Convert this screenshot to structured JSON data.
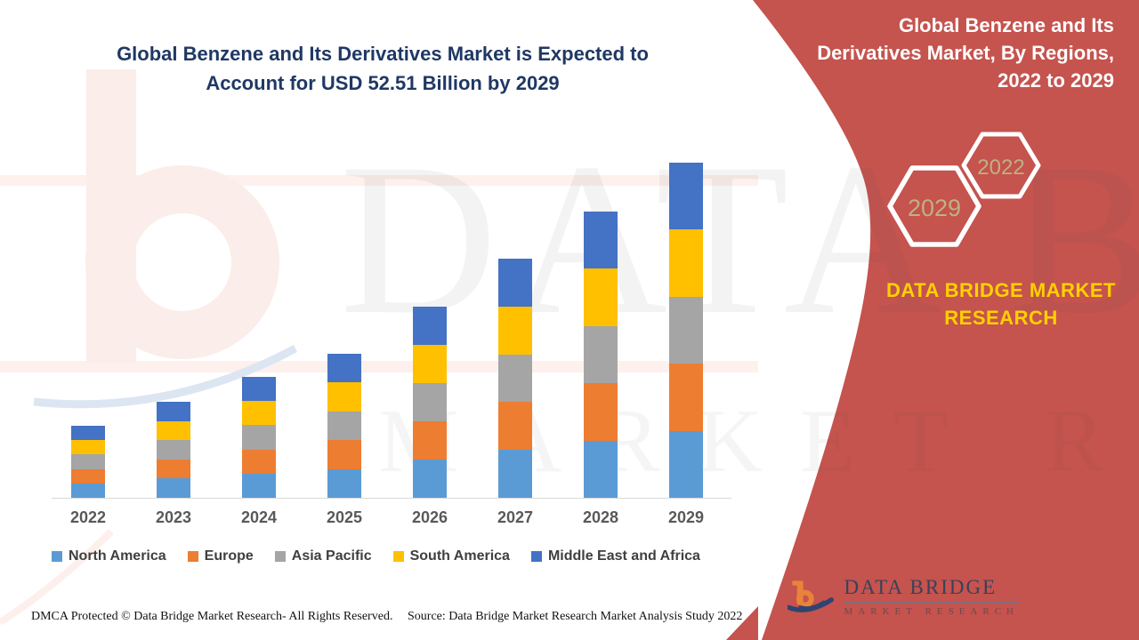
{
  "header": {
    "left_title_lines": [
      "Global Benzene and Its Derivatives Market is Expected to",
      "Account for USD 52.51 Billion by 2029"
    ],
    "title_color": "#1F3864"
  },
  "right_panel": {
    "bg_color": "#C5534E",
    "title_lines": [
      "Global Benzene and Its",
      "Derivatives Market, By Regions,",
      "2022 to 2029"
    ],
    "hexagon_years": [
      "2029",
      "2022"
    ],
    "hexagon_text_color": "#BFB183",
    "brand_lines": [
      "DATA BRIDGE MARKET",
      "RESEARCH"
    ],
    "brand_color": "#FFD100"
  },
  "watermark": {
    "line1": "DATA BRIDGE",
    "line2": "MARKET RESEARCH"
  },
  "chart_data": {
    "type": "bar",
    "stacked": true,
    "title": "Global Benzene and Its Derivatives Market is Expected to Account for USD 52.51 Billion by 2029",
    "unit": "USD Billion",
    "categories": [
      "2022",
      "2023",
      "2024",
      "2025",
      "2026",
      "2027",
      "2028",
      "2029"
    ],
    "series": [
      {
        "name": "North America",
        "color": "#5B9BD5",
        "values": [
          2.26,
          3.01,
          3.79,
          4.51,
          5.99,
          7.49,
          8.97,
          10.5
        ]
      },
      {
        "name": "Europe",
        "color": "#ED7D31",
        "values": [
          2.26,
          3.01,
          3.79,
          4.51,
          5.99,
          7.49,
          8.97,
          10.5
        ]
      },
      {
        "name": "Asia Pacific",
        "color": "#A5A5A5",
        "values": [
          2.26,
          3.01,
          3.79,
          4.51,
          5.99,
          7.49,
          8.97,
          10.5
        ]
      },
      {
        "name": "South America",
        "color": "#FFC000",
        "values": [
          2.26,
          3.01,
          3.79,
          4.51,
          5.99,
          7.49,
          8.97,
          10.5
        ]
      },
      {
        "name": "Middle East and Africa",
        "color": "#4472C4",
        "values": [
          2.26,
          3.01,
          3.79,
          4.51,
          5.99,
          7.49,
          8.97,
          10.5
        ]
      }
    ],
    "totals_estimated": [
      11.3,
      15.0,
      18.9,
      22.6,
      30.0,
      37.5,
      44.9,
      52.51
    ],
    "ylim": [
      0,
      55
    ],
    "xlabel": "",
    "ylabel": "",
    "grid": false,
    "y_axis_visible": false,
    "legend_position": "bottom"
  },
  "footer": {
    "dmca": "DMCA Protected © Data Bridge Market Research- All Rights Reserved.",
    "source": "Source: Data Bridge Market Research Market Analysis Study 2022"
  },
  "logo": {
    "title": "DATA BRIDGE",
    "subtitle": "MARKET RESEARCH"
  }
}
